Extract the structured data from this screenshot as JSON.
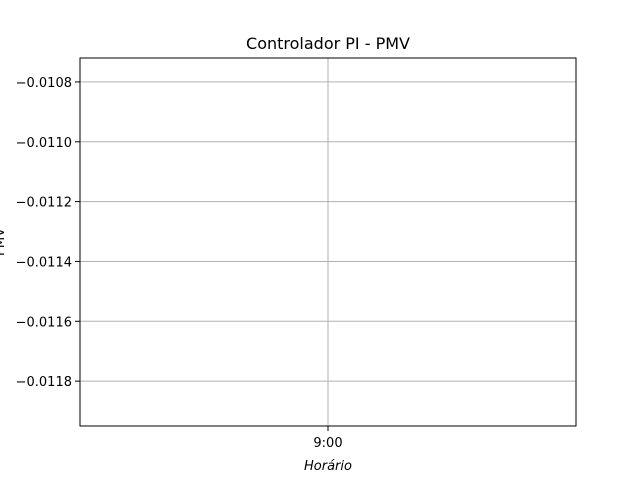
{
  "chart_data": {
    "type": "line",
    "title": "Controlador PI - PMV",
    "xlabel": "Horário",
    "ylabel": "PMV",
    "x_ticks": [
      "9:00"
    ],
    "y_ticks": [
      -0.0108,
      -0.011,
      -0.0112,
      -0.0114,
      -0.0116,
      -0.0118
    ],
    "y_tick_labels": [
      "−0.0108",
      "−0.0110",
      "−0.0112",
      "−0.0114",
      "−0.0116",
      "−0.0118"
    ],
    "ylim": [
      -0.01195,
      -0.01072
    ],
    "grid": true,
    "series": [
      {
        "values": []
      }
    ],
    "colors": {
      "grid": "#b0b0b0",
      "axis": "#000000",
      "text": "#000000"
    }
  }
}
